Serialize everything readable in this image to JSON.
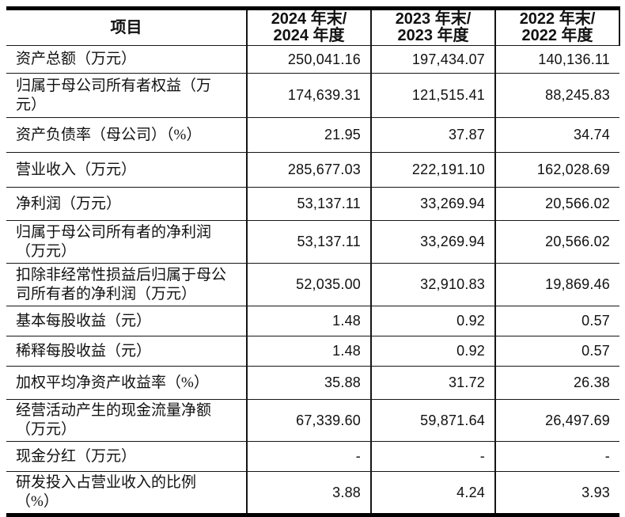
{
  "table": {
    "header": {
      "item_label": "项目",
      "year_columns": [
        "2024 年末/\n2024 年度",
        "2023 年末/\n2023 年度",
        "2022 年末/\n2022 年度"
      ]
    },
    "rows": [
      {
        "label": "资产总额（万元）",
        "values": [
          "250,041.16",
          "197,434.07",
          "140,136.11"
        ]
      },
      {
        "label": "归属于母公司所有者权益（万\n元）",
        "values": [
          "174,639.31",
          "121,515.41",
          "88,245.83"
        ]
      },
      {
        "label": "资产负债率（母公司）（%）",
        "values": [
          "21.95",
          "37.87",
          "34.74"
        ]
      },
      {
        "label": "营业收入（万元）",
        "values": [
          "285,677.03",
          "222,191.10",
          "162,028.69"
        ]
      },
      {
        "label": "净利润（万元）",
        "values": [
          "53,137.11",
          "33,269.94",
          "20,566.02"
        ]
      },
      {
        "label": "归属于母公司所有者的净利润\n（万元）",
        "values": [
          "53,137.11",
          "33,269.94",
          "20,566.02"
        ]
      },
      {
        "label": "扣除非经常性损益后归属于母公\n司所有者的净利润（万元）",
        "values": [
          "52,035.00",
          "32,910.83",
          "19,869.46"
        ]
      },
      {
        "label": "基本每股收益（元）",
        "values": [
          "1.48",
          "0.92",
          "0.57"
        ]
      },
      {
        "label": "稀释每股收益（元）",
        "values": [
          "1.48",
          "0.92",
          "0.57"
        ]
      },
      {
        "label": "加权平均净资产收益率（%）",
        "values": [
          "35.88",
          "31.72",
          "26.38"
        ]
      },
      {
        "label": "经营活动产生的现金流量净额\n（万元）",
        "values": [
          "67,339.60",
          "59,871.64",
          "26,497.69"
        ]
      },
      {
        "label": "现金分红（万元）",
        "values": [
          "-",
          "-",
          "-"
        ]
      },
      {
        "label": "研发投入占营业收入的比例\n（%）",
        "values": [
          "3.88",
          "4.24",
          "3.93"
        ]
      }
    ]
  }
}
